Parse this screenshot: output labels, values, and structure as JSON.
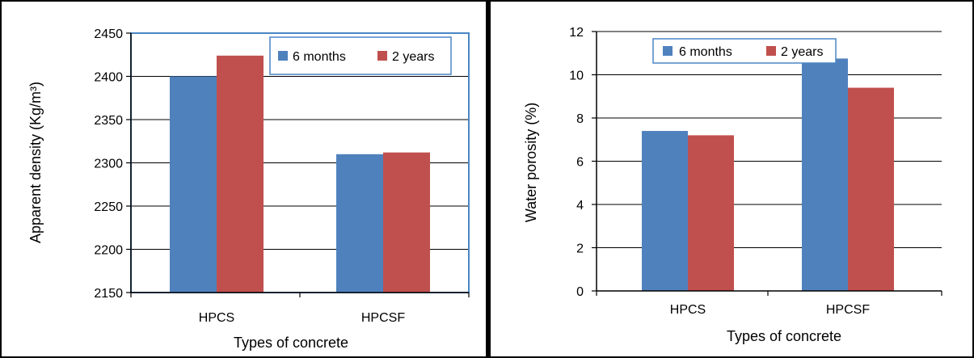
{
  "colors": {
    "series1": "#4F81BD",
    "series2": "#C0504D",
    "axis": "#000000",
    "frame": "#4A86C5",
    "border": "#000000"
  },
  "chart_data": [
    {
      "type": "bar",
      "categories": [
        "HPCS",
        "HPCSF"
      ],
      "series": [
        {
          "name": "6 months",
          "values": [
            2400,
            2310
          ]
        },
        {
          "name": "2 years",
          "values": [
            2424,
            2312
          ]
        }
      ],
      "title": "",
      "xlabel": "Types of concrete",
      "ylabel": "Apparent density (Kg/m³)",
      "ylim": [
        2150,
        2450
      ],
      "yticks": [
        "2150",
        "2200",
        "2250",
        "2300",
        "2350",
        "2400",
        "2450"
      ],
      "grid": true,
      "legend_position": "top-right"
    },
    {
      "type": "bar",
      "categories": [
        "HPCS",
        "HPCSF"
      ],
      "series": [
        {
          "name": "6 months",
          "values": [
            7.4,
            10.75
          ]
        },
        {
          "name": "2 years",
          "values": [
            7.2,
            9.4
          ]
        }
      ],
      "title": "",
      "xlabel": "Types of concrete",
      "ylabel": "Water porosity (%)",
      "ylim": [
        0,
        12
      ],
      "yticks": [
        "0",
        "2",
        "4",
        "6",
        "8",
        "10",
        "12"
      ],
      "grid": true,
      "legend_position": "top"
    }
  ]
}
